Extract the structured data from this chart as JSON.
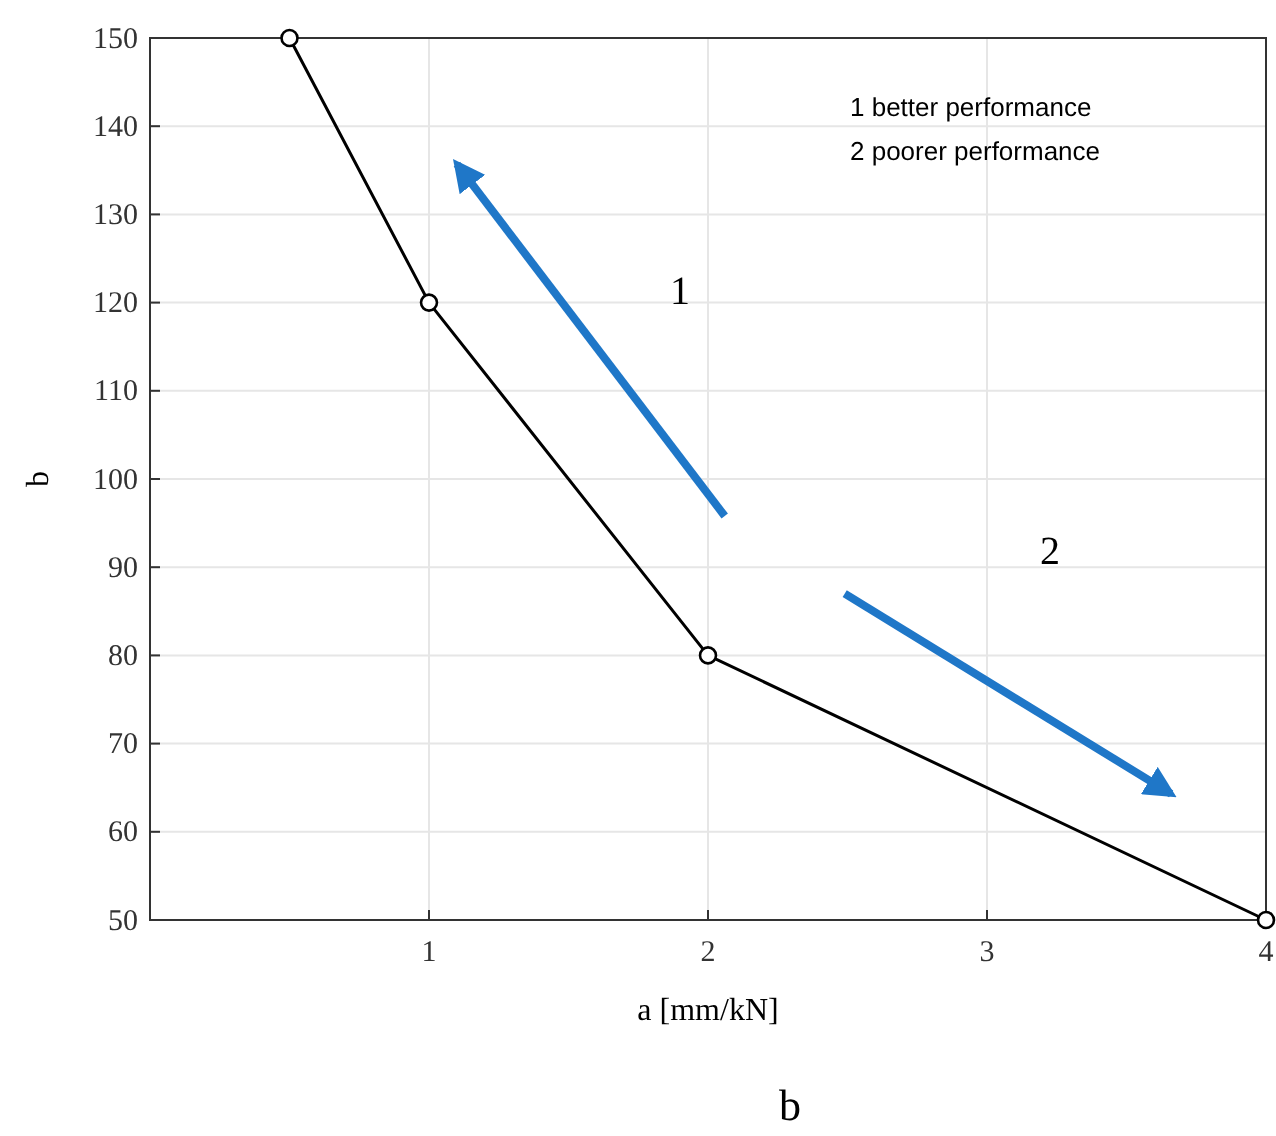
{
  "chart_data": {
    "type": "line",
    "xlabel": "a [mm/kN]",
    "ylabel": "b",
    "x": [
      0.5,
      1,
      2,
      4
    ],
    "series": [
      {
        "color": "#000000",
        "values": [
          150,
          120,
          80,
          50
        ]
      }
    ],
    "xlim": [
      0,
      4
    ],
    "xticks": [
      1,
      2,
      3,
      4
    ],
    "ylim": [
      50,
      150
    ],
    "yticks": [
      50,
      60,
      70,
      80,
      90,
      100,
      110,
      120,
      130,
      140,
      150
    ],
    "grid": true,
    "marker": "circle",
    "line_style": "solid",
    "annotations": [
      "1  better performance",
      "2  poorer performance",
      "1",
      "2",
      "b"
    ]
  }
}
